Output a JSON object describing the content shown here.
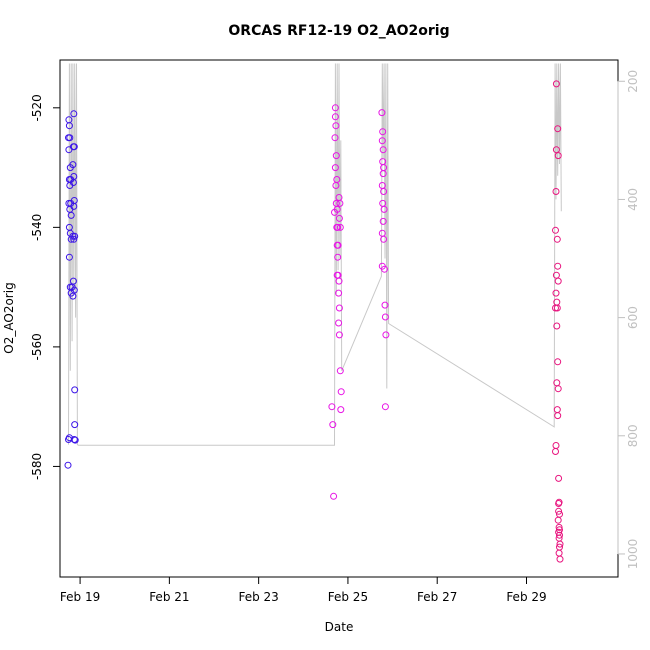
{
  "chart_data": {
    "type": "scatter",
    "title": "ORCAS RF12-19 O2_AO2orig",
    "xlabel": "Date",
    "ylabel": "O2_AO2orig",
    "xlim": [
      18.55,
      31.05
    ],
    "ylim": [
      -598.5,
      -512
    ],
    "y2lim": [
      1039,
      164
    ],
    "x_ticks": [
      {
        "value": 19,
        "label": "Feb 19"
      },
      {
        "value": 21,
        "label": "Feb 21"
      },
      {
        "value": 23,
        "label": "Feb 23"
      },
      {
        "value": 25,
        "label": "Feb 25"
      },
      {
        "value": 27,
        "label": "Feb 27"
      },
      {
        "value": 29,
        "label": "Feb 29"
      }
    ],
    "y_ticks": [
      {
        "value": -520,
        "label": "-520"
      },
      {
        "value": -540,
        "label": "-540"
      },
      {
        "value": -560,
        "label": "-560"
      },
      {
        "value": -580,
        "label": "-580"
      }
    ],
    "y2_ticks": [
      {
        "value": 200,
        "label": "200"
      },
      {
        "value": 400,
        "label": "400"
      },
      {
        "value": 600,
        "label": "600"
      },
      {
        "value": 800,
        "label": "800"
      },
      {
        "value": 1000,
        "label": "1000"
      }
    ],
    "pressure_trace": {
      "color": "#c8c8c8",
      "points": [
        [
          18.74,
          815
        ],
        [
          18.76,
          170
        ],
        [
          18.78,
          690
        ],
        [
          18.8,
          170
        ],
        [
          18.82,
          640
        ],
        [
          18.84,
          170
        ],
        [
          18.86,
          560
        ],
        [
          18.88,
          170
        ],
        [
          18.9,
          600
        ],
        [
          18.92,
          170
        ],
        [
          18.94,
          815
        ],
        [
          18.96,
          816
        ],
        [
          24.7,
          816
        ],
        [
          24.72,
          170
        ],
        [
          24.74,
          560
        ],
        [
          24.76,
          170
        ],
        [
          24.78,
          520
        ],
        [
          24.8,
          170
        ],
        [
          24.82,
          500
        ],
        [
          24.84,
          300
        ],
        [
          24.86,
          690
        ],
        [
          25.75,
          530
        ],
        [
          25.77,
          170
        ],
        [
          25.79,
          330
        ],
        [
          25.81,
          170
        ],
        [
          25.83,
          500
        ],
        [
          25.85,
          170
        ],
        [
          25.87,
          720
        ],
        [
          25.89,
          170
        ],
        [
          25.91,
          610
        ],
        [
          29.62,
          785
        ],
        [
          29.64,
          170
        ],
        [
          29.66,
          400
        ],
        [
          29.68,
          170
        ],
        [
          29.7,
          360
        ],
        [
          29.72,
          170
        ],
        [
          29.74,
          340
        ],
        [
          29.76,
          170
        ],
        [
          29.78,
          420
        ]
      ]
    },
    "series": [
      {
        "color": "#3b14e8",
        "points": [
          [
            18.75,
            -522
          ],
          [
            18.76,
            -523
          ],
          [
            18.74,
            -525
          ],
          [
            18.77,
            -525
          ],
          [
            18.75,
            -527
          ],
          [
            18.78,
            -530
          ],
          [
            18.76,
            -532
          ],
          [
            18.79,
            -532
          ],
          [
            18.77,
            -533
          ],
          [
            18.75,
            -536
          ],
          [
            18.77,
            -537
          ],
          [
            18.79,
            -536
          ],
          [
            18.8,
            -538
          ],
          [
            18.76,
            -540
          ],
          [
            18.78,
            -541
          ],
          [
            18.8,
            -542
          ],
          [
            18.76,
            -545
          ],
          [
            18.78,
            -550
          ],
          [
            18.8,
            -551
          ],
          [
            18.82,
            -550
          ],
          [
            18.74,
            -575.5
          ],
          [
            18.76,
            -575.2
          ],
          [
            18.73,
            -579.8
          ],
          [
            18.86,
            -521
          ],
          [
            18.85,
            -526.5
          ],
          [
            18.87,
            -526.5
          ],
          [
            18.84,
            -529.5
          ],
          [
            18.86,
            -531.5
          ],
          [
            18.85,
            -532.5
          ],
          [
            18.87,
            -535.5
          ],
          [
            18.86,
            -536.5
          ],
          [
            18.84,
            -541.5
          ],
          [
            18.86,
            -542
          ],
          [
            18.88,
            -541.5
          ],
          [
            18.85,
            -549
          ],
          [
            18.87,
            -550.5
          ],
          [
            18.84,
            -551.5
          ],
          [
            18.88,
            -567.2
          ],
          [
            18.88,
            -573
          ],
          [
            18.87,
            -575.5
          ],
          [
            18.89,
            -575.6
          ]
        ]
      },
      {
        "color": "#e815e6",
        "points": [
          [
            24.64,
            -570
          ],
          [
            24.66,
            -573
          ],
          [
            24.68,
            -585
          ],
          [
            24.7,
            -537.5
          ],
          [
            24.72,
            -520
          ],
          [
            24.72,
            -521.5
          ],
          [
            24.73,
            -523
          ],
          [
            24.71,
            -525
          ],
          [
            24.74,
            -528
          ],
          [
            24.72,
            -530
          ],
          [
            24.75,
            -532
          ],
          [
            24.73,
            -533
          ],
          [
            24.74,
            -536
          ],
          [
            24.76,
            -537
          ],
          [
            24.75,
            -540
          ],
          [
            24.77,
            -540
          ],
          [
            24.76,
            -543
          ],
          [
            24.78,
            -543
          ],
          [
            24.77,
            -545
          ],
          [
            24.76,
            -548
          ],
          [
            24.78,
            -548
          ],
          [
            24.8,
            -549
          ],
          [
            24.79,
            -551
          ],
          [
            24.81,
            -553.5
          ],
          [
            24.79,
            -556
          ],
          [
            24.81,
            -558
          ],
          [
            24.83,
            -564
          ],
          [
            24.85,
            -567.5
          ],
          [
            24.84,
            -570.5
          ],
          [
            24.8,
            -535
          ],
          [
            24.82,
            -536
          ],
          [
            24.81,
            -538.5
          ],
          [
            24.83,
            -540
          ],
          [
            25.76,
            -520.8
          ],
          [
            25.78,
            -524
          ],
          [
            25.77,
            -525.5
          ],
          [
            25.79,
            -527
          ],
          [
            25.78,
            -529
          ],
          [
            25.8,
            -530
          ],
          [
            25.79,
            -531
          ],
          [
            25.77,
            -533
          ],
          [
            25.8,
            -534
          ],
          [
            25.78,
            -536
          ],
          [
            25.81,
            -537
          ],
          [
            25.79,
            -539
          ],
          [
            25.77,
            -541
          ],
          [
            25.8,
            -542
          ],
          [
            25.82,
            -547
          ],
          [
            25.77,
            -546.5
          ],
          [
            25.83,
            -553
          ],
          [
            25.84,
            -555
          ],
          [
            25.85,
            -558
          ],
          [
            25.84,
            -570
          ]
        ]
      },
      {
        "color": "#e8157f",
        "points": [
          [
            29.67,
            -516
          ],
          [
            29.7,
            -523.5
          ],
          [
            29.67,
            -527
          ],
          [
            29.71,
            -528
          ],
          [
            29.66,
            -534
          ],
          [
            29.65,
            -540.5
          ],
          [
            29.69,
            -542
          ],
          [
            29.7,
            -546.5
          ],
          [
            29.67,
            -548
          ],
          [
            29.71,
            -549
          ],
          [
            29.66,
            -551
          ],
          [
            29.68,
            -552.5
          ],
          [
            29.65,
            -553.5
          ],
          [
            29.69,
            -553.5
          ],
          [
            29.68,
            -556.5
          ],
          [
            29.7,
            -562.5
          ],
          [
            29.68,
            -566
          ],
          [
            29.71,
            -567
          ],
          [
            29.69,
            -570.5
          ],
          [
            29.7,
            -571.5
          ],
          [
            29.66,
            -576.5
          ],
          [
            29.65,
            -577.5
          ],
          [
            29.72,
            -582
          ],
          [
            29.73,
            -586
          ],
          [
            29.72,
            -587.5
          ],
          [
            29.74,
            -588
          ],
          [
            29.71,
            -589
          ],
          [
            29.73,
            -590.2
          ],
          [
            29.72,
            -591
          ],
          [
            29.74,
            -591.5
          ],
          [
            29.73,
            -592
          ],
          [
            29.75,
            -593
          ],
          [
            29.74,
            -593.5
          ],
          [
            29.73,
            -594.5
          ],
          [
            29.75,
            -595.5
          ],
          [
            29.72,
            -586.2
          ],
          [
            29.74,
            -590.6
          ]
        ]
      }
    ]
  }
}
